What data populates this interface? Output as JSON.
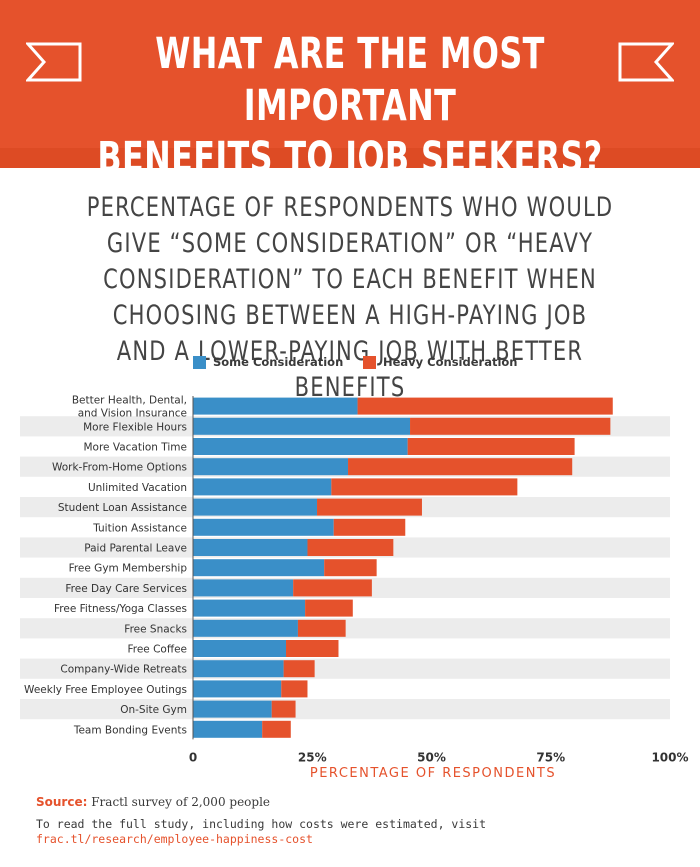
{
  "header": {
    "title": "WHAT ARE THE MOST IMPORTANT\nBENEFITS TO JOB SEEKERS?"
  },
  "colors": {
    "header_bg": "#e5522c",
    "some": "#3a8fc8",
    "heavy": "#e5522c",
    "stripe": "#ececec"
  },
  "chart_data": {
    "type": "bar",
    "orientation": "horizontal",
    "stacked": true,
    "title": "PERCENTAGE OF RESPONDENTS WHO WOULD GIVE “SOME CONSIDERATION” OR “HEAVY CONSIDERATION” TO EACH BENEFIT WHEN CHOOSING BETWEEN A HIGH-PAYING JOB AND A LOWER-PAYING JOB WITH BETTER BENEFITS",
    "xlabel": "PERCENTAGE OF RESPONDENTS",
    "xlim": [
      0,
      100
    ],
    "x_ticks": [
      "0",
      "25%",
      "50%",
      "75%",
      "100%"
    ],
    "legend_position": "top",
    "categories": [
      "Better Health, Dental,\nand Vision Insurance",
      "More Flexible Hours",
      "More Vacation Time",
      "Work-From-Home Options",
      "Unlimited Vacation",
      "Student Loan Assistance",
      "Tuition Assistance",
      "Paid Parental Leave",
      "Free Gym Membership",
      "Free Day Care Services",
      "Free Fitness/Yoga Classes",
      "Free Snacks",
      "Free Coffee",
      "Company-Wide Retreats",
      "Weekly Free Employee Outings",
      "On-Site Gym",
      "Team Bonding Events"
    ],
    "series": [
      {
        "name": "Some Consideration",
        "values": [
          34.5,
          45.5,
          45,
          32.5,
          29,
          26,
          29.5,
          24,
          27.5,
          21,
          23.5,
          22,
          19.5,
          19,
          18.5,
          16.5,
          14.5
        ]
      },
      {
        "name": "Heavy Consideration",
        "values": [
          53.5,
          42,
          35,
          47,
          39,
          22,
          15,
          18,
          11,
          16.5,
          10,
          10,
          11,
          6.5,
          5.5,
          5,
          6
        ]
      }
    ]
  },
  "source": {
    "label": "Source:",
    "text": "Fractl survey of 2,000 people"
  },
  "note": {
    "line1": "To read the full study, including how costs were estimated, visit",
    "link": "frac.tl/research/employee-happiness-cost"
  }
}
